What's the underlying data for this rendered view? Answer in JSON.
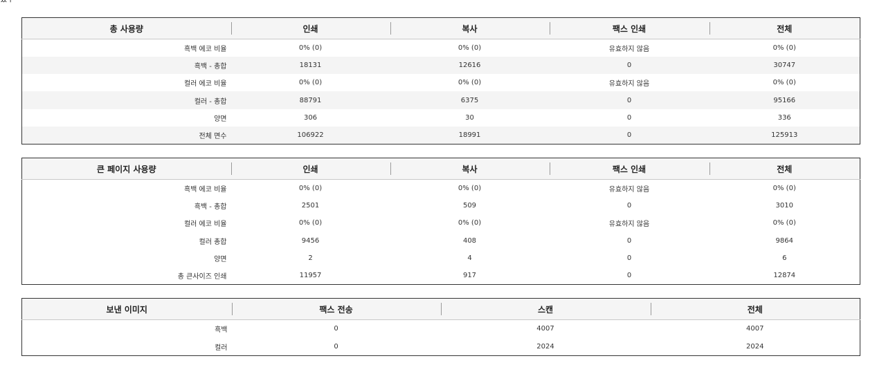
{
  "top_fragment": "됐구",
  "tables": {
    "total": {
      "headers": [
        "총 사용량",
        "인쇄",
        "복사",
        "팩스 인쇄",
        "전체"
      ],
      "rows": [
        {
          "label": "흑백 에코 비율",
          "values": [
            "0% (0)",
            "0% (0)",
            "유효하지 않음",
            "0% (0)"
          ]
        },
        {
          "label": "흑백 - 총합",
          "values": [
            "18131",
            "12616",
            "0",
            "30747"
          ]
        },
        {
          "label": "컬러 에코 비율",
          "values": [
            "0% (0)",
            "0% (0)",
            "유효하지 않음",
            "0% (0)"
          ]
        },
        {
          "label": "컬러 - 총합",
          "values": [
            "88791",
            "6375",
            "0",
            "95166"
          ]
        },
        {
          "label": "양면",
          "values": [
            "306",
            "30",
            "0",
            "336"
          ]
        },
        {
          "label": "전체 면수",
          "values": [
            "106922",
            "18991",
            "0",
            "125913"
          ]
        }
      ]
    },
    "large": {
      "headers": [
        "큰 페이지 사용량",
        "인쇄",
        "복사",
        "팩스 인쇄",
        "전체"
      ],
      "rows": [
        {
          "label": "흑백 에코 비율",
          "values": [
            "0% (0)",
            "0% (0)",
            "유효하지 않음",
            "0% (0)"
          ]
        },
        {
          "label": "흑백 - 총합",
          "values": [
            "2501",
            "509",
            "0",
            "3010"
          ]
        },
        {
          "label": "컬러 에코 비율",
          "values": [
            "0% (0)",
            "0% (0)",
            "유효하지 않음",
            "0% (0)"
          ]
        },
        {
          "label": "컬러 총합",
          "values": [
            "9456",
            "408",
            "0",
            "9864"
          ]
        },
        {
          "label": "양면",
          "values": [
            "2",
            "4",
            "0",
            "6"
          ]
        },
        {
          "label": "총 큰사이즈 인쇄",
          "values": [
            "11957",
            "917",
            "0",
            "12874"
          ]
        }
      ]
    },
    "sent": {
      "headers": [
        "보낸 이미지",
        "팩스 전송",
        "스캔",
        "전체"
      ],
      "rows": [
        {
          "label": "흑백",
          "values": [
            "0",
            "4007",
            "4007"
          ]
        },
        {
          "label": "컬러",
          "values": [
            "0",
            "2024",
            "2024"
          ]
        }
      ]
    }
  }
}
